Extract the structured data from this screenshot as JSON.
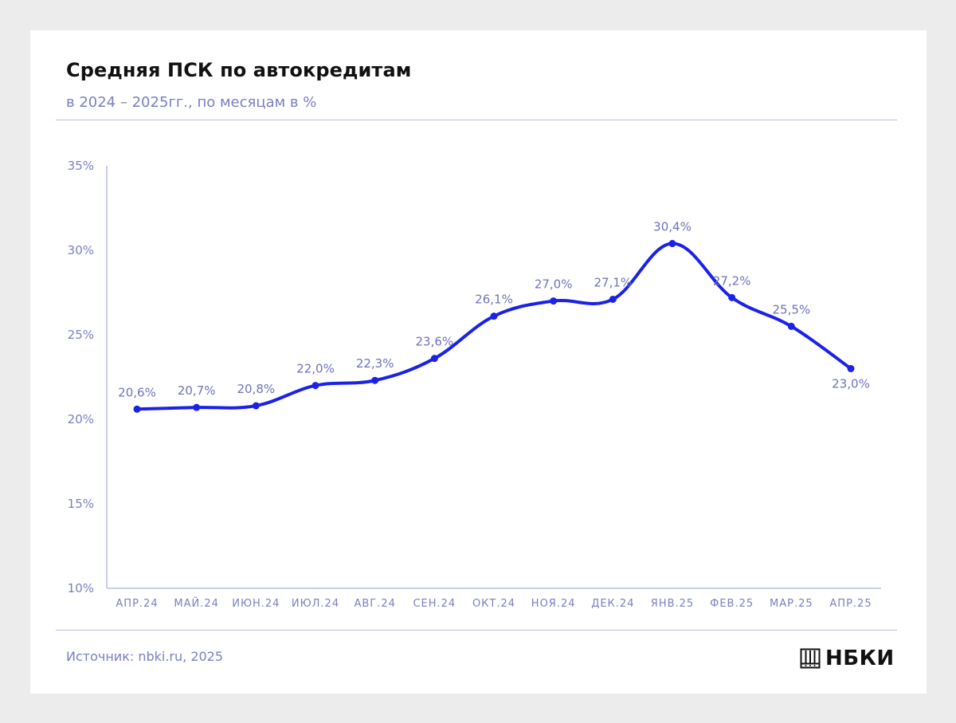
{
  "header": {
    "title": "Средняя ПСК по автокредитам",
    "subtitle": "в 2024 – 2025гг., по месяцам в %"
  },
  "footer": {
    "source": "Источник: nbki.ru, 2025",
    "logo_text": "НБКИ",
    "logo_icon": "nbki-building-icon"
  },
  "colors": {
    "line": "#1a22e6",
    "text_muted": "#7a7fc0",
    "rule": "#b9bde3"
  },
  "chart_data": {
    "type": "line",
    "title": "Средняя ПСК по автокредитам",
    "subtitle": "в 2024 – 2025гг., по месяцам в %",
    "categories": [
      "АПР.24",
      "МАЙ.24",
      "ИЮН.24",
      "ИЮЛ.24",
      "АВГ.24",
      "СЕН.24",
      "ОКТ.24",
      "НОЯ.24",
      "ДЕК.24",
      "ЯНВ.25",
      "ФЕВ.25",
      "МАР.25",
      "АПР.25"
    ],
    "values": [
      20.6,
      20.7,
      20.8,
      22.0,
      22.3,
      23.6,
      26.1,
      27.0,
      27.1,
      30.4,
      27.2,
      25.5,
      23.0
    ],
    "data_labels": [
      "20,6%",
      "20,7%",
      "20,8%",
      "22,0%",
      "22,3%",
      "23,6%",
      "26,1%",
      "27,0%",
      "27,1%",
      "30,4%",
      "27,2%",
      "25,5%",
      "23,0%"
    ],
    "yticks": [
      10,
      15,
      20,
      25,
      30,
      35
    ],
    "ytick_labels": [
      "10%",
      "15%",
      "20%",
      "25%",
      "30%",
      "35%"
    ],
    "ylim": [
      10,
      35
    ],
    "xlabel": "",
    "ylabel": "",
    "grid": false,
    "legend": "none",
    "smooth": true
  }
}
